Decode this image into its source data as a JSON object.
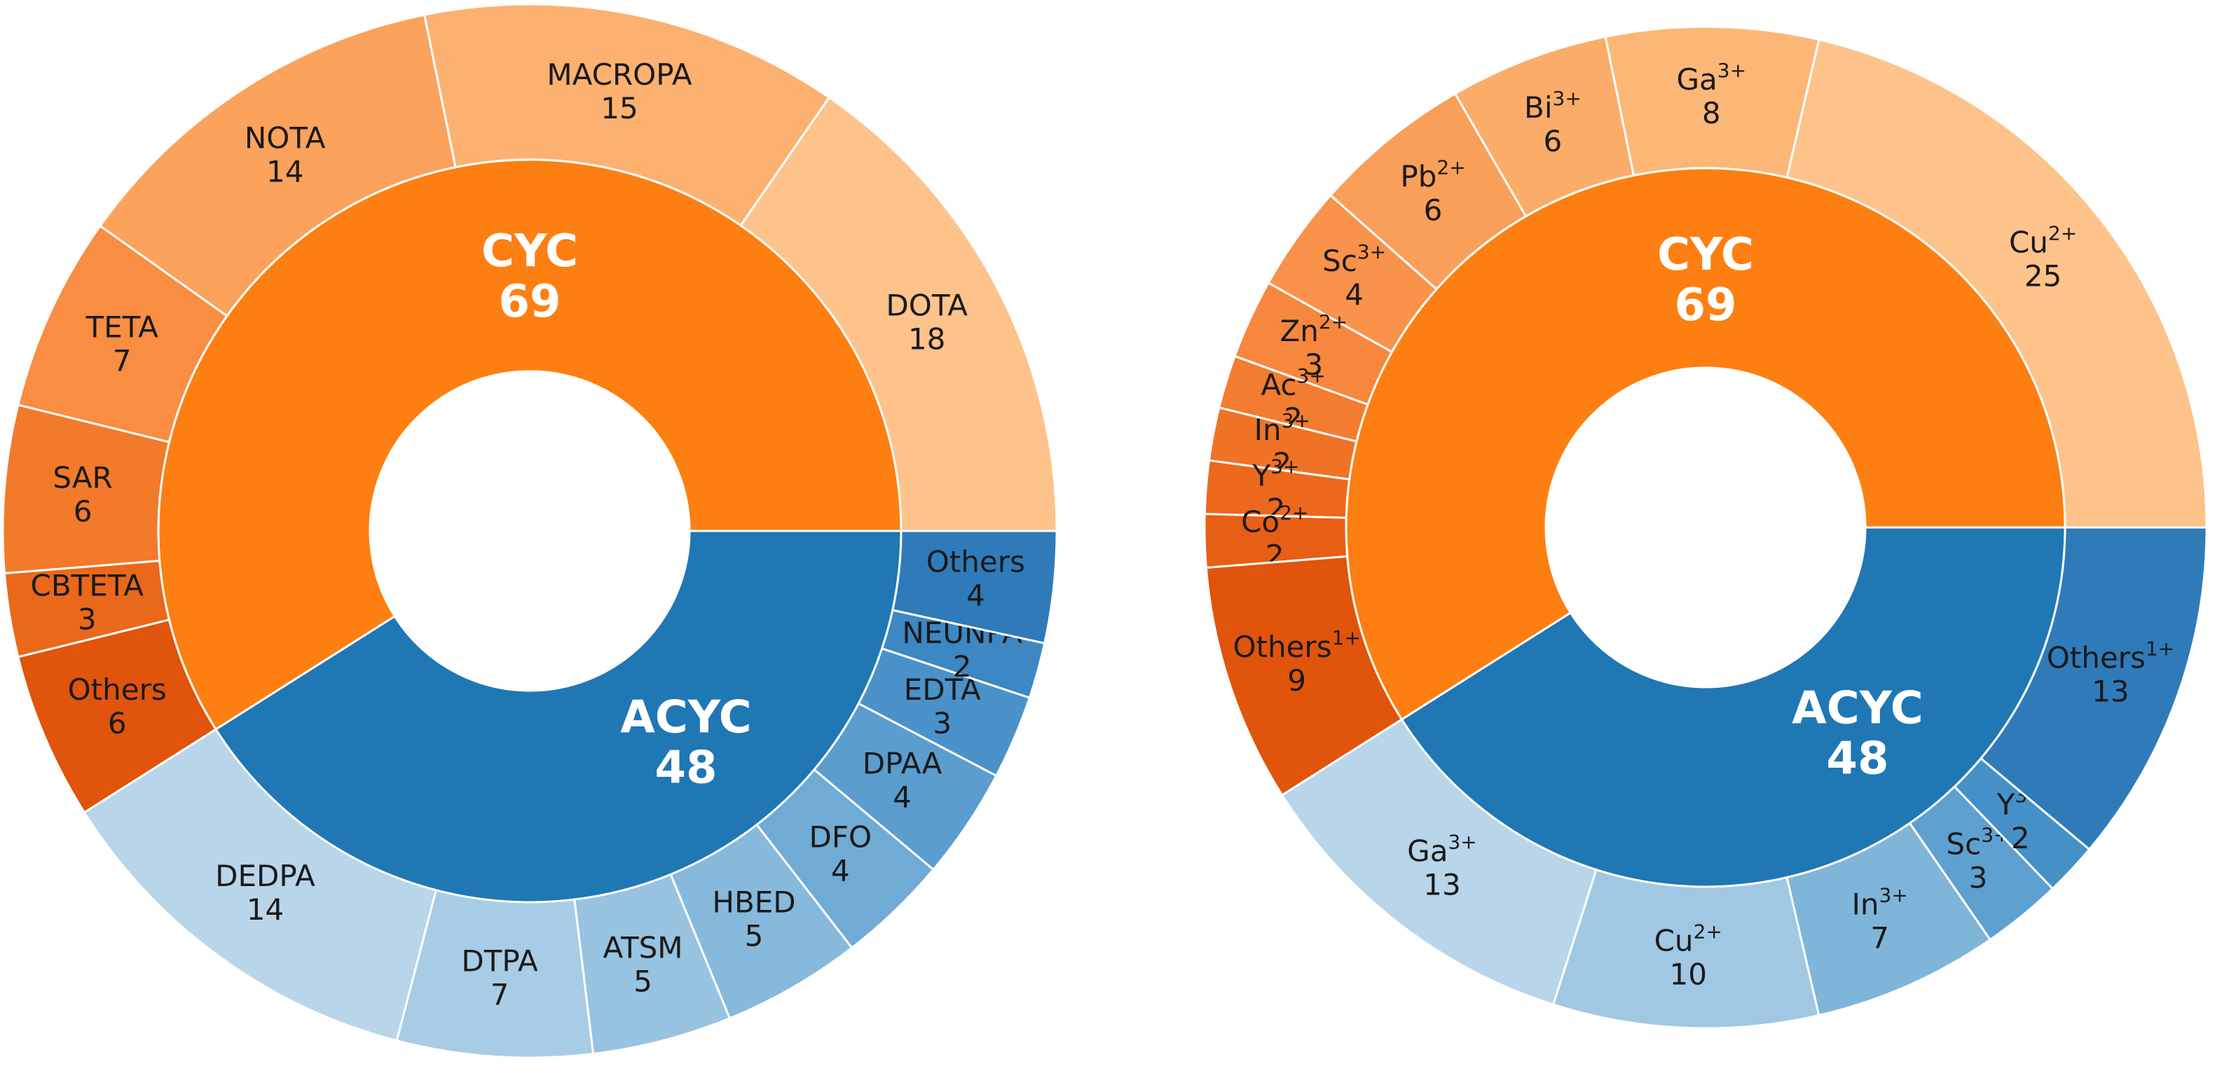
{
  "chart_data": [
    {
      "type": "sunburst",
      "title": "",
      "inner": [
        {
          "name": "CYC",
          "value": 69,
          "color": "#fd7f12"
        },
        {
          "name": "ACYC",
          "value": 48,
          "color": "#1f77b4"
        }
      ],
      "outer": [
        {
          "parent": "CYC",
          "label": "DOTA",
          "value": 18,
          "color": "#fdc38b"
        },
        {
          "parent": "CYC",
          "label": "MACROPA",
          "value": 15,
          "color": "#fcb170"
        },
        {
          "parent": "CYC",
          "label": "NOTA",
          "value": 14,
          "color": "#fba25c"
        },
        {
          "parent": "CYC",
          "label": "TETA",
          "value": 7,
          "color": "#f98d42"
        },
        {
          "parent": "CYC",
          "label": "SAR",
          "value": 6,
          "color": "#f27a2a"
        },
        {
          "parent": "CYC",
          "label": "CBTETA",
          "value": 3,
          "color": "#ea6819"
        },
        {
          "parent": "CYC",
          "label": "Others",
          "value": 6,
          "color": "#e0540c"
        },
        {
          "parent": "ACYC",
          "label": "DEDPA",
          "value": 14,
          "color": "#b8d5ea"
        },
        {
          "parent": "ACYC",
          "label": "DTPA",
          "value": 7,
          "color": "#a9cce6"
        },
        {
          "parent": "ACYC",
          "label": "ATSM",
          "value": 5,
          "color": "#98c3e1"
        },
        {
          "parent": "ACYC",
          "label": "HBED",
          "value": 5,
          "color": "#86b9dc"
        },
        {
          "parent": "ACYC",
          "label": "DFO",
          "value": 4,
          "color": "#70abd6"
        },
        {
          "parent": "ACYC",
          "label": "DPAA",
          "value": 4,
          "color": "#5b9dcf"
        },
        {
          "parent": "ACYC",
          "label": "EDTA",
          "value": 3,
          "color": "#4a92c9"
        },
        {
          "parent": "ACYC",
          "label": "NEUNPA",
          "value": 2,
          "color": "#3d87c2"
        },
        {
          "parent": "ACYC",
          "label": "Others",
          "value": 4,
          "color": "#2f7bba"
        }
      ]
    },
    {
      "type": "sunburst",
      "title": "",
      "inner": [
        {
          "name": "CYC",
          "value": 69,
          "color": "#fd7f12"
        },
        {
          "name": "ACYC",
          "value": 48,
          "color": "#1f77b4"
        }
      ],
      "outer": [
        {
          "parent": "CYC",
          "label": "Cu",
          "charge": "2+",
          "value": 25,
          "color": "#fdc38b"
        },
        {
          "parent": "CYC",
          "label": "Ga",
          "charge": "3+",
          "value": 8,
          "color": "#fcb777"
        },
        {
          "parent": "CYC",
          "label": "Bi",
          "charge": "3+",
          "value": 6,
          "color": "#fbac69"
        },
        {
          "parent": "CYC",
          "label": "Pb",
          "charge": "2+",
          "value": 6,
          "color": "#fa9f59"
        },
        {
          "parent": "CYC",
          "label": "Sc",
          "charge": "3+",
          "value": 4,
          "color": "#f9924a"
        },
        {
          "parent": "CYC",
          "label": "Zn",
          "charge": "2+",
          "value": 3,
          "color": "#f7873d"
        },
        {
          "parent": "CYC",
          "label": "Ac",
          "charge": "3+",
          "value": 2,
          "color": "#f47c31"
        },
        {
          "parent": "CYC",
          "label": "In",
          "charge": "3+",
          "value": 2,
          "color": "#f07226"
        },
        {
          "parent": "CYC",
          "label": "Y",
          "charge": "3+",
          "value": 2,
          "color": "#ec681c"
        },
        {
          "parent": "CYC",
          "label": "Co",
          "charge": "2+",
          "value": 2,
          "color": "#e75f14"
        },
        {
          "parent": "CYC",
          "label": "Others",
          "charge": "1+",
          "value": 9,
          "color": "#e0540c"
        },
        {
          "parent": "ACYC",
          "label": "Ga",
          "charge": "3+",
          "value": 13,
          "color": "#b8d5ea"
        },
        {
          "parent": "ACYC",
          "label": "Cu",
          "charge": "2+",
          "value": 10,
          "color": "#a0c8e3"
        },
        {
          "parent": "ACYC",
          "label": "In",
          "charge": "3+",
          "value": 7,
          "color": "#80b5da"
        },
        {
          "parent": "ACYC",
          "label": "Sc",
          "charge": "3+",
          "value": 3,
          "color": "#5ea0d0"
        },
        {
          "parent": "ACYC",
          "label": "Y",
          "charge": "3+",
          "value": 2,
          "color": "#4590c6"
        },
        {
          "parent": "ACYC",
          "label": "Others",
          "charge": "1+",
          "value": 13,
          "color": "#2f7bba"
        }
      ]
    }
  ]
}
